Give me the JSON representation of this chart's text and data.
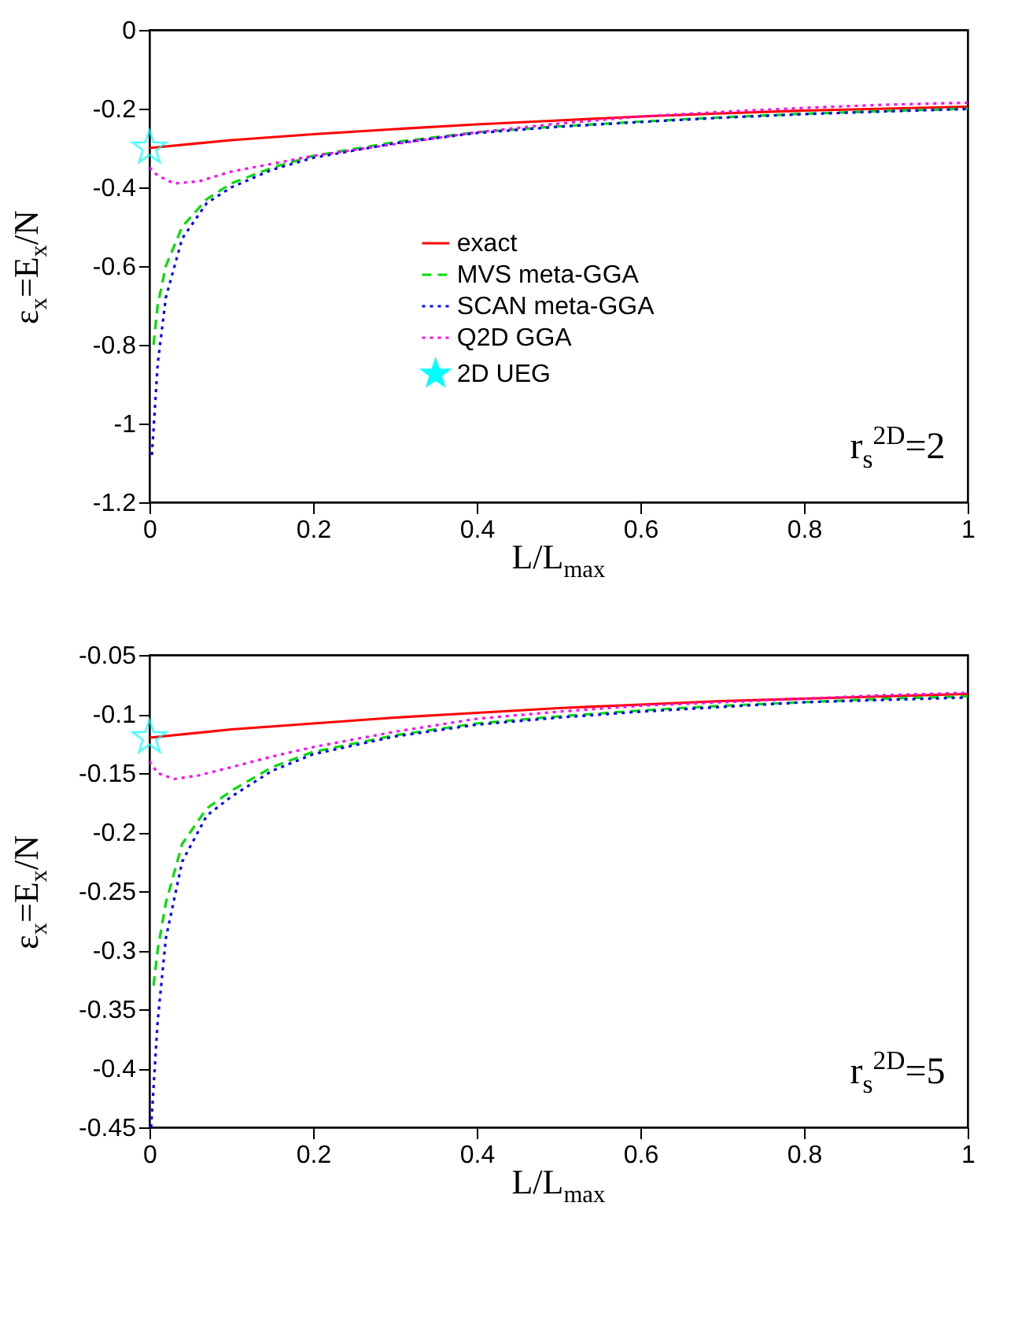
{
  "chart_data": [
    {
      "type": "line",
      "xlabel": "L/L$_{max}$",
      "ylabel": "ε$_{x}$=E$_{x}$/N",
      "xlim": [
        0,
        1
      ],
      "ylim": [
        -1.2,
        0
      ],
      "xticks": [
        0,
        0.2,
        0.4,
        0.6,
        0.8,
        1
      ],
      "yticks": [
        -1.2,
        -1,
        -0.8,
        -0.6,
        -0.4,
        -0.2,
        0
      ],
      "legend": "right",
      "grid": false,
      "annotations": [
        "r$_{s}$$^{2D}$=2"
      ],
      "series": [
        {
          "name": "exact",
          "color": "#ff0000",
          "line_style": "solid",
          "x": [
            0,
            0.1,
            0.2,
            0.3,
            0.4,
            0.5,
            0.6,
            0.7,
            0.8,
            0.9,
            1
          ],
          "values": [
            -0.3,
            -0.28,
            -0.265,
            -0.252,
            -0.24,
            -0.23,
            -0.22,
            -0.212,
            -0.205,
            -0.2,
            -0.195
          ]
        },
        {
          "name": "MVS meta-GGA",
          "color": "#00dd00",
          "line_style": "dashed",
          "x": [
            0.005,
            0.01,
            0.02,
            0.04,
            0.07,
            0.1,
            0.15,
            0.2,
            0.3,
            0.4,
            0.5,
            0.6,
            0.7,
            0.8,
            0.9,
            1
          ],
          "values": [
            -0.8,
            -0.7,
            -0.6,
            -0.5,
            -0.43,
            -0.39,
            -0.35,
            -0.32,
            -0.285,
            -0.26,
            -0.245,
            -0.233,
            -0.222,
            -0.213,
            -0.206,
            -0.2
          ]
        },
        {
          "name": "SCAN meta-GGA",
          "color": "#0000ff",
          "line_style": "dotted",
          "x": [
            0.003,
            0.01,
            0.02,
            0.04,
            0.07,
            0.1,
            0.15,
            0.2,
            0.3,
            0.4,
            0.5,
            0.6,
            0.7,
            0.8,
            0.9,
            1
          ],
          "values": [
            -1.08,
            -0.85,
            -0.68,
            -0.53,
            -0.44,
            -0.4,
            -0.355,
            -0.325,
            -0.288,
            -0.262,
            -0.246,
            -0.234,
            -0.223,
            -0.214,
            -0.207,
            -0.201
          ]
        },
        {
          "name": "Q2D GGA",
          "color": "#ff00ff",
          "line_style": "dotted",
          "x": [
            0,
            0.01,
            0.03,
            0.06,
            0.1,
            0.15,
            0.2,
            0.3,
            0.4,
            0.5,
            0.6,
            0.7,
            0.8,
            0.9,
            1
          ],
          "values": [
            -0.35,
            -0.37,
            -0.39,
            -0.385,
            -0.36,
            -0.34,
            -0.32,
            -0.29,
            -0.26,
            -0.238,
            -0.22,
            -0.208,
            -0.198,
            -0.19,
            -0.185
          ]
        },
        {
          "name": "2D UEG",
          "type": "scatter",
          "marker": "star",
          "color": "#00ffff",
          "x": [
            0
          ],
          "values": [
            -0.3
          ]
        }
      ]
    },
    {
      "type": "line",
      "xlabel": "L/L$_{max}$",
      "ylabel": "ε$_{x}$=E$_{x}$/N",
      "xlim": [
        0,
        1
      ],
      "ylim": [
        -0.45,
        -0.05
      ],
      "xticks": [
        0,
        0.2,
        0.4,
        0.6,
        0.8,
        1
      ],
      "yticks": [
        -0.45,
        -0.4,
        -0.35,
        -0.3,
        -0.25,
        -0.2,
        -0.15,
        -0.1,
        -0.05
      ],
      "legend": "right",
      "grid": false,
      "annotations": [
        "r$_{s}$$^{2D}$=5"
      ],
      "series": [
        {
          "name": "exact",
          "color": "#ff0000",
          "line_style": "solid",
          "x": [
            0,
            0.1,
            0.2,
            0.3,
            0.4,
            0.5,
            0.6,
            0.7,
            0.8,
            0.9,
            1
          ],
          "values": [
            -0.12,
            -0.113,
            -0.108,
            -0.103,
            -0.099,
            -0.095,
            -0.092,
            -0.089,
            -0.087,
            -0.085,
            -0.083
          ]
        },
        {
          "name": "MVS meta-GGA",
          "color": "#00dd00",
          "line_style": "dashed",
          "x": [
            0.005,
            0.01,
            0.02,
            0.04,
            0.07,
            0.1,
            0.15,
            0.2,
            0.3,
            0.4,
            0.5,
            0.6,
            0.7,
            0.8,
            0.9,
            1
          ],
          "values": [
            -0.33,
            -0.3,
            -0.26,
            -0.21,
            -0.18,
            -0.165,
            -0.145,
            -0.132,
            -0.118,
            -0.108,
            -0.102,
            -0.097,
            -0.093,
            -0.09,
            -0.087,
            -0.085
          ]
        },
        {
          "name": "SCAN meta-GGA",
          "color": "#0000ff",
          "line_style": "dotted",
          "x": [
            0.002,
            0.01,
            0.02,
            0.04,
            0.07,
            0.1,
            0.15,
            0.2,
            0.3,
            0.4,
            0.5,
            0.6,
            0.7,
            0.8,
            0.9,
            1
          ],
          "values": [
            -0.45,
            -0.36,
            -0.29,
            -0.225,
            -0.186,
            -0.17,
            -0.148,
            -0.134,
            -0.119,
            -0.109,
            -0.103,
            -0.098,
            -0.094,
            -0.09,
            -0.088,
            -0.086
          ]
        },
        {
          "name": "Q2D GGA",
          "color": "#ff00ff",
          "line_style": "dotted",
          "x": [
            0,
            0.01,
            0.03,
            0.06,
            0.1,
            0.15,
            0.2,
            0.3,
            0.4,
            0.5,
            0.6,
            0.7,
            0.8,
            0.9,
            1
          ],
          "values": [
            -0.14,
            -0.15,
            -0.155,
            -0.152,
            -0.145,
            -0.136,
            -0.128,
            -0.115,
            -0.104,
            -0.098,
            -0.093,
            -0.09,
            -0.087,
            -0.084,
            -0.082
          ]
        },
        {
          "name": "2D UEG",
          "type": "scatter",
          "marker": "star",
          "color": "#00ffff",
          "x": [
            0
          ],
          "values": [
            -0.12
          ]
        }
      ]
    }
  ]
}
